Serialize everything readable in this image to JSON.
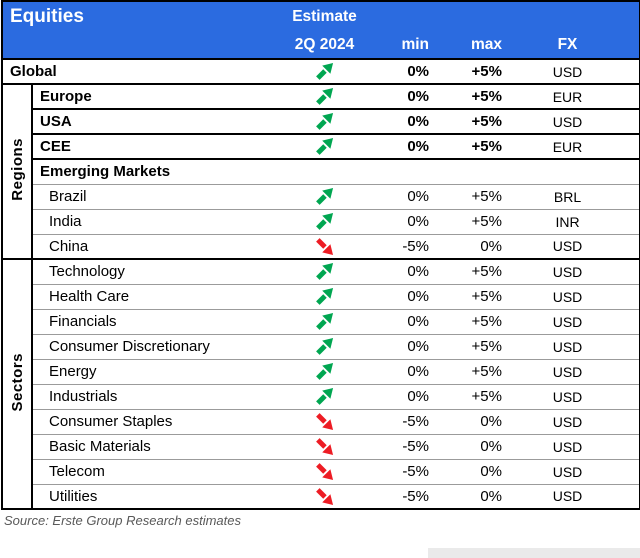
{
  "header": {
    "title": "Equities",
    "estimate": "Estimate",
    "period": "2Q 2024",
    "min": "min",
    "max": "max",
    "fx": "FX"
  },
  "icons": {
    "up_arrow": "arrow-up-right-icon",
    "down_arrow": "arrow-down-right-icon",
    "up_arrow_color": "#00A651",
    "down_arrow_color": "#ED1C24"
  },
  "colors": {
    "header_bg": "#2B6BE0",
    "header_text": "#FFFFFF",
    "thick_border": "#000000",
    "thin_border": "#9B9B9B"
  },
  "table": {
    "groups": [
      {
        "label": "",
        "rows": [
          {
            "name": "Global",
            "bold": true,
            "indent": 0,
            "arrow": "up",
            "min": "0%",
            "max": "+5%",
            "fx": "USD",
            "divider": "thick"
          }
        ]
      },
      {
        "label": "Regions",
        "rows": [
          {
            "name": "Europe",
            "bold": true,
            "indent": 0,
            "arrow": "up",
            "min": "0%",
            "max": "+5%",
            "fx": "EUR",
            "divider": "thick"
          },
          {
            "name": "USA",
            "bold": true,
            "indent": 0,
            "arrow": "up",
            "min": "0%",
            "max": "+5%",
            "fx": "USD",
            "divider": "thick"
          },
          {
            "name": "CEE",
            "bold": true,
            "indent": 0,
            "arrow": "up",
            "min": "0%",
            "max": "+5%",
            "fx": "EUR",
            "divider": "thick"
          },
          {
            "name": "Emerging Markets",
            "bold": true,
            "indent": 0,
            "arrow": null,
            "min": "",
            "max": "",
            "fx": "",
            "divider": "thin"
          },
          {
            "name": "Brazil",
            "bold": false,
            "indent": 1,
            "arrow": "up",
            "min": "0%",
            "max": "+5%",
            "fx": "BRL",
            "divider": "thin"
          },
          {
            "name": "India",
            "bold": false,
            "indent": 1,
            "arrow": "up",
            "min": "0%",
            "max": "+5%",
            "fx": "INR",
            "divider": "thin"
          },
          {
            "name": "China",
            "bold": false,
            "indent": 1,
            "arrow": "down",
            "min": "-5%",
            "max": "0%",
            "fx": "USD",
            "divider": "thick"
          }
        ]
      },
      {
        "label": "Sectors",
        "rows": [
          {
            "name": "Technology",
            "bold": false,
            "indent": 1,
            "arrow": "up",
            "min": "0%",
            "max": "+5%",
            "fx": "USD",
            "divider": "thin"
          },
          {
            "name": "Health Care",
            "bold": false,
            "indent": 1,
            "arrow": "up",
            "min": "0%",
            "max": "+5%",
            "fx": "USD",
            "divider": "thin"
          },
          {
            "name": "Financials",
            "bold": false,
            "indent": 1,
            "arrow": "up",
            "min": "0%",
            "max": "+5%",
            "fx": "USD",
            "divider": "thin"
          },
          {
            "name": "Consumer Discretionary",
            "bold": false,
            "indent": 1,
            "arrow": "up",
            "min": "0%",
            "max": "+5%",
            "fx": "USD",
            "divider": "thin"
          },
          {
            "name": "Energy",
            "bold": false,
            "indent": 1,
            "arrow": "up",
            "min": "0%",
            "max": "+5%",
            "fx": "USD",
            "divider": "thin"
          },
          {
            "name": "Industrials",
            "bold": false,
            "indent": 1,
            "arrow": "up",
            "min": "0%",
            "max": "+5%",
            "fx": "USD",
            "divider": "thin"
          },
          {
            "name": "Consumer Staples",
            "bold": false,
            "indent": 1,
            "arrow": "down",
            "min": "-5%",
            "max": "0%",
            "fx": "USD",
            "divider": "thin"
          },
          {
            "name": "Basic Materials",
            "bold": false,
            "indent": 1,
            "arrow": "down",
            "min": "-5%",
            "max": "0%",
            "fx": "USD",
            "divider": "thin"
          },
          {
            "name": "Telecom",
            "bold": false,
            "indent": 1,
            "arrow": "down",
            "min": "-5%",
            "max": "0%",
            "fx": "USD",
            "divider": "thin"
          },
          {
            "name": "Utilities",
            "bold": false,
            "indent": 1,
            "arrow": "down",
            "min": "-5%",
            "max": "0%",
            "fx": "USD",
            "divider": "thick"
          }
        ]
      }
    ]
  },
  "footer": {
    "source": "Source: Erste Group Research estimates"
  }
}
